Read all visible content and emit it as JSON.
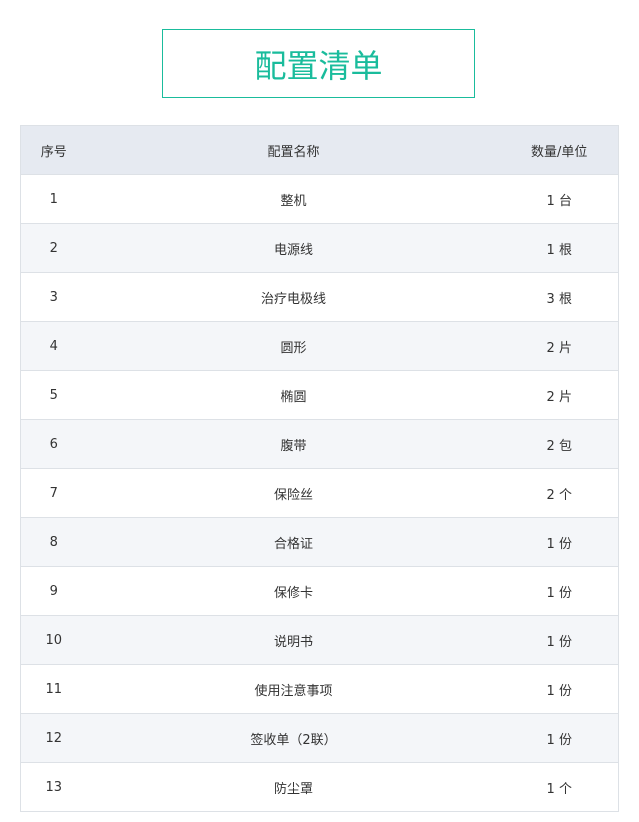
{
  "title": "配置清单",
  "table": {
    "headers": [
      "序号",
      "配置名称",
      "数量/单位"
    ],
    "rows": [
      [
        "1",
        "整机",
        "1 台"
      ],
      [
        "2",
        "电源线",
        "1 根"
      ],
      [
        "3",
        "治疗电极线",
        "3 根"
      ],
      [
        "4",
        "圆形",
        "2 片"
      ],
      [
        "5",
        "椭圆",
        "2 片"
      ],
      [
        "6",
        "腹带",
        "2 包"
      ],
      [
        "7",
        "保险丝",
        "2 个"
      ],
      [
        "8",
        "合格证",
        "1 份"
      ],
      [
        "9",
        "保修卡",
        "1 份"
      ],
      [
        "10",
        "说明书",
        "1 份"
      ],
      [
        "11",
        "使用注意事项",
        "1 份"
      ],
      [
        "12",
        "签收单（2联）",
        "1 份"
      ],
      [
        "13",
        "防尘罩",
        "1 个"
      ]
    ]
  },
  "colors": {
    "accent": "#1abc9c",
    "header_bg": "#e6eaf1",
    "stripe_bg": "#f4f6f9"
  }
}
